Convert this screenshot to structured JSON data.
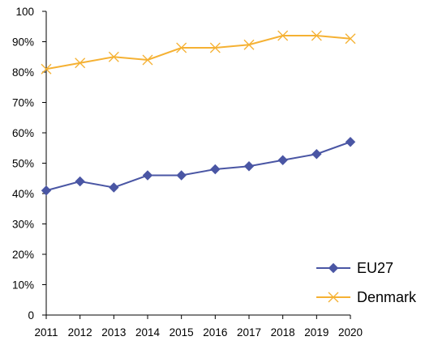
{
  "chart_data": {
    "type": "line",
    "title": "",
    "xlabel": "",
    "ylabel": "",
    "x": [
      2011,
      2012,
      2013,
      2014,
      2015,
      2016,
      2017,
      2018,
      2019,
      2020
    ],
    "ylim": [
      0,
      100
    ],
    "y_tick_values": [
      0,
      10,
      20,
      30,
      40,
      50,
      60,
      70,
      80,
      90,
      100
    ],
    "y_tick_labels": [
      "0",
      "10%",
      "20%",
      "30%",
      "40%",
      "50%",
      "60%",
      "70%",
      "80%",
      "90%",
      "100"
    ],
    "grid": false,
    "legend_position": "bottom-right",
    "series": [
      {
        "name": "EU27",
        "color": "#4a56a4",
        "marker": "diamond",
        "values": [
          41,
          44,
          42,
          46,
          46,
          48,
          49,
          51,
          53,
          57
        ]
      },
      {
        "name": "Denmark",
        "color": "#f5b133",
        "marker": "x",
        "values": [
          81,
          83,
          85,
          84,
          88,
          88,
          89,
          92,
          92,
          91
        ]
      }
    ]
  }
}
